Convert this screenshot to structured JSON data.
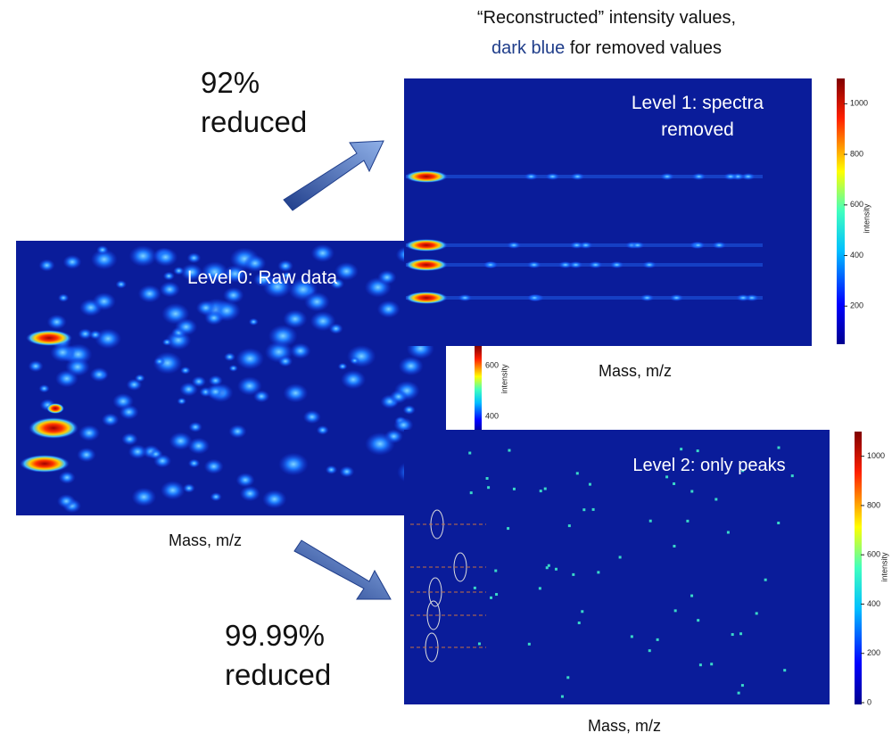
{
  "header": {
    "line1": "“Reconstructed” intensity values,",
    "highlight": "dark blue",
    "line2_rest": "for removed values"
  },
  "annotations": {
    "top": [
      "92%",
      "reduced"
    ],
    "bottom": [
      "99.99%",
      "reduced"
    ]
  },
  "panels": [
    {
      "label": "Level  0: Raw data",
      "xlabel": "Mass, m/z",
      "colorbar": {
        "ticks": [
          600,
          400
        ],
        "label": "intensity"
      }
    },
    {
      "label": [
        "Level 1: spectra",
        "removed"
      ],
      "xlabel": "Mass, m/z",
      "colorbar": {
        "ticks": [
          1000,
          800,
          600,
          400,
          200
        ],
        "label": "intensity"
      }
    },
    {
      "label": "Level 2: only peaks",
      "xlabel": "Mass, m/z",
      "colorbar": {
        "ticks": [
          1000,
          800,
          600,
          400,
          200,
          0
        ],
        "label": "intensity"
      }
    }
  ]
}
